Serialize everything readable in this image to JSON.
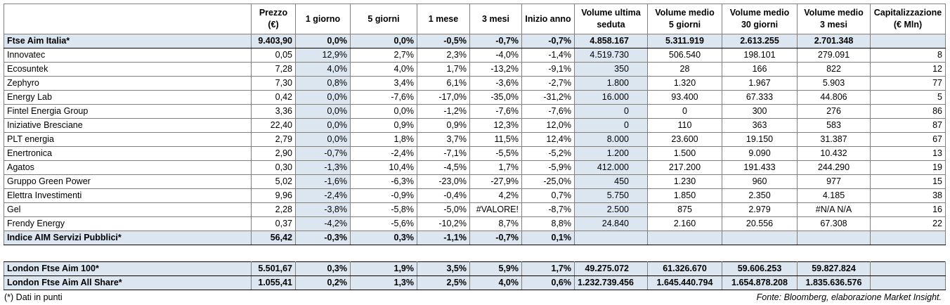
{
  "header": [
    [
      "Prezzo",
      "(€)"
    ],
    [
      "1 giorno"
    ],
    [
      "5 giorni"
    ],
    [
      "1 mese"
    ],
    [
      "3 mesi"
    ],
    [
      "Inizio anno"
    ],
    [
      "Volume ultima",
      "seduta"
    ],
    [
      "Volume medio",
      "5 giorni"
    ],
    [
      "Volume medio",
      "30 giorni"
    ],
    [
      "Volume medio",
      "3 mesi"
    ],
    [
      "Capitalizzazione",
      "(€ Mln)"
    ]
  ],
  "index_row": [
    "Ftse Aim Italia*",
    "9.403,90",
    "0,0%",
    "0,0%",
    "-0,5%",
    "-0,7%",
    "-0,7%",
    "4.858.167",
    "5.311.919",
    "2.613.255",
    "2.701.348"
  ],
  "rows": [
    [
      "Innovatec",
      "0,05",
      "12,9%",
      "2,7%",
      "2,3%",
      "-4,0%",
      "-1,4%",
      "4.519.730",
      "506.540",
      "198.101",
      "279.091",
      "8"
    ],
    [
      "Ecosuntek",
      "7,28",
      "4,0%",
      "4,0%",
      "1,7%",
      "-13,2%",
      "-9,1%",
      "350",
      "28",
      "166",
      "822",
      "12"
    ],
    [
      "Zephyro",
      "7,30",
      "0,8%",
      "3,4%",
      "6,1%",
      "-3,6%",
      "-2,7%",
      "1.800",
      "1.320",
      "1.967",
      "5.903",
      "77"
    ],
    [
      "Energy Lab",
      "0,42",
      "0,0%",
      "-7,6%",
      "-17,0%",
      "-35,0%",
      "-31,2%",
      "16.000",
      "93.400",
      "67.333",
      "44.806",
      "5"
    ],
    [
      "Fintel Energia Group",
      "3,36",
      "0,0%",
      "0,0%",
      "-1,2%",
      "-7,6%",
      "-7,6%",
      "0",
      "0",
      "300",
      "276",
      "86"
    ],
    [
      "Iniziative Bresciane",
      "22,40",
      "0,0%",
      "0,9%",
      "0,9%",
      "12,3%",
      "12,0%",
      "0",
      "110",
      "363",
      "583",
      "87"
    ],
    [
      "PLT energia",
      "2,79",
      "0,0%",
      "1,8%",
      "3,7%",
      "11,5%",
      "12,4%",
      "8.000",
      "23.600",
      "19.150",
      "31.387",
      "67"
    ],
    [
      "Enertronica",
      "2,90",
      "-0,7%",
      "-2,4%",
      "-7,1%",
      "-5,5%",
      "-5,2%",
      "1.200",
      "1.500",
      "9.090",
      "10.432",
      "13"
    ],
    [
      "Agatos",
      "0,30",
      "-1,3%",
      "10,4%",
      "-4,5%",
      "1,7%",
      "-5,9%",
      "412.000",
      "217.200",
      "191.433",
      "244.290",
      "19"
    ],
    [
      "Gruppo Green Power",
      "5,02",
      "-1,6%",
      "-6,3%",
      "-23,0%",
      "-27,9%",
      "-25,0%",
      "450",
      "1.230",
      "960",
      "977",
      "15"
    ],
    [
      "Elettra Investimenti",
      "9,96",
      "-2,4%",
      "-0,9%",
      "-0,4%",
      "4,2%",
      "0,7%",
      "5.750",
      "1.850",
      "2.350",
      "4.185",
      "38"
    ],
    [
      "Gel",
      "2,28",
      "-3,8%",
      "-5,8%",
      "-5,0%",
      "#VALORE!",
      "-8,7%",
      "2.500",
      "875",
      "2.979",
      "#N/A N/A",
      "16"
    ],
    [
      "Frendy Energy",
      "0,37",
      "-4,2%",
      "-5,6%",
      "-10,2%",
      "8,7%",
      "8,8%",
      "24.840",
      "2.160",
      "20.556",
      "67.308",
      "22"
    ]
  ],
  "summary_row": [
    "Indice AIM Servizi Pubblici*",
    "56,42",
    "-0,3%",
    "0,3%",
    "-1,1%",
    "-0,7%",
    "0,1%"
  ],
  "london_rows": [
    [
      "London Ftse Aim 100*",
      "5.501,67",
      "0,3%",
      "1,9%",
      "3,5%",
      "5,9%",
      "1,7%",
      "49.275.072",
      "61.326.670",
      "59.606.253",
      "59.827.824"
    ],
    [
      "London Ftse Aim All Share*",
      "1.055,41",
      "0,2%",
      "1,3%",
      "2,5%",
      "4,0%",
      "0,6%",
      "1.232.739.456",
      "1.645.440.794",
      "1.654.878.208",
      "1.835.636.576"
    ]
  ],
  "footnote": "(*) Dati in punti",
  "source": "Fonte: Bloomberg, elaborazione Market Insight."
}
